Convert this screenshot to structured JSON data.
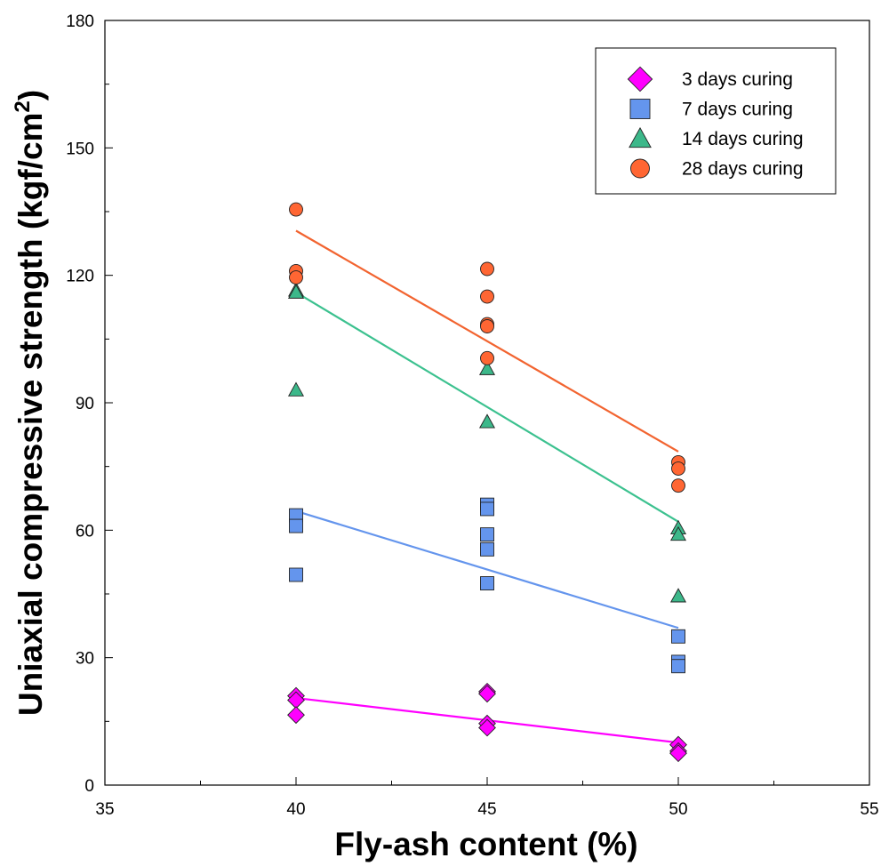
{
  "chart_data": {
    "type": "scatter",
    "title": "",
    "xlabel": "Fly-ash content (%)",
    "ylabel": "Uniaxial compressive strength (kgf/cm²)",
    "xlim": [
      35,
      55
    ],
    "ylim": [
      0,
      180
    ],
    "x_ticks": [
      35,
      40,
      45,
      50,
      55
    ],
    "y_ticks": [
      0,
      30,
      60,
      90,
      120,
      150,
      180
    ],
    "grid": false,
    "legend_position": "top-right",
    "series": [
      {
        "name": "3 days curing",
        "marker": "diamond",
        "color": "#ff00ff",
        "line_color": "#ff00ff",
        "points": [
          [
            40,
            21
          ],
          [
            40,
            20
          ],
          [
            40,
            16.5
          ],
          [
            45,
            22
          ],
          [
            45,
            21.5
          ],
          [
            45,
            14.5
          ],
          [
            45,
            13.5
          ],
          [
            50,
            9.5
          ],
          [
            50,
            8
          ],
          [
            50,
            7.5
          ]
        ],
        "fit": [
          [
            40,
            20.5
          ],
          [
            50,
            10
          ]
        ]
      },
      {
        "name": "7 days curing",
        "marker": "square",
        "color": "#6495ed",
        "line_color": "#6495ed",
        "points": [
          [
            40,
            63.5
          ],
          [
            40,
            61
          ],
          [
            40,
            49.5
          ],
          [
            45,
            66
          ],
          [
            45,
            65
          ],
          [
            45,
            59
          ],
          [
            45,
            55.5
          ],
          [
            45,
            47.5
          ],
          [
            50,
            35
          ],
          [
            50,
            29
          ],
          [
            50,
            28
          ]
        ],
        "fit": [
          [
            40,
            64.5
          ],
          [
            50,
            37
          ]
        ]
      },
      {
        "name": "14 days curing",
        "marker": "triangle",
        "color": "#3cb88a",
        "line_color": "#3cc18f",
        "points": [
          [
            40,
            116.5
          ],
          [
            40,
            116
          ],
          [
            40,
            93
          ],
          [
            45,
            98
          ],
          [
            45,
            85.5
          ],
          [
            50,
            60.5
          ],
          [
            50,
            59
          ],
          [
            50,
            44.5
          ]
        ],
        "fit": [
          [
            40,
            116
          ],
          [
            50,
            62
          ]
        ]
      },
      {
        "name": "28 days curing",
        "marker": "circle",
        "color": "#ff6633",
        "line_color": "#f26430",
        "points": [
          [
            40,
            135.5
          ],
          [
            40,
            121
          ],
          [
            40,
            119.5
          ],
          [
            45,
            121.5
          ],
          [
            45,
            115
          ],
          [
            45,
            108.5
          ],
          [
            45,
            108
          ],
          [
            45,
            100.5
          ],
          [
            50,
            76
          ],
          [
            50,
            74.5
          ],
          [
            50,
            70.5
          ]
        ],
        "fit": [
          [
            40,
            130.5
          ],
          [
            50,
            78.5
          ]
        ]
      }
    ]
  }
}
